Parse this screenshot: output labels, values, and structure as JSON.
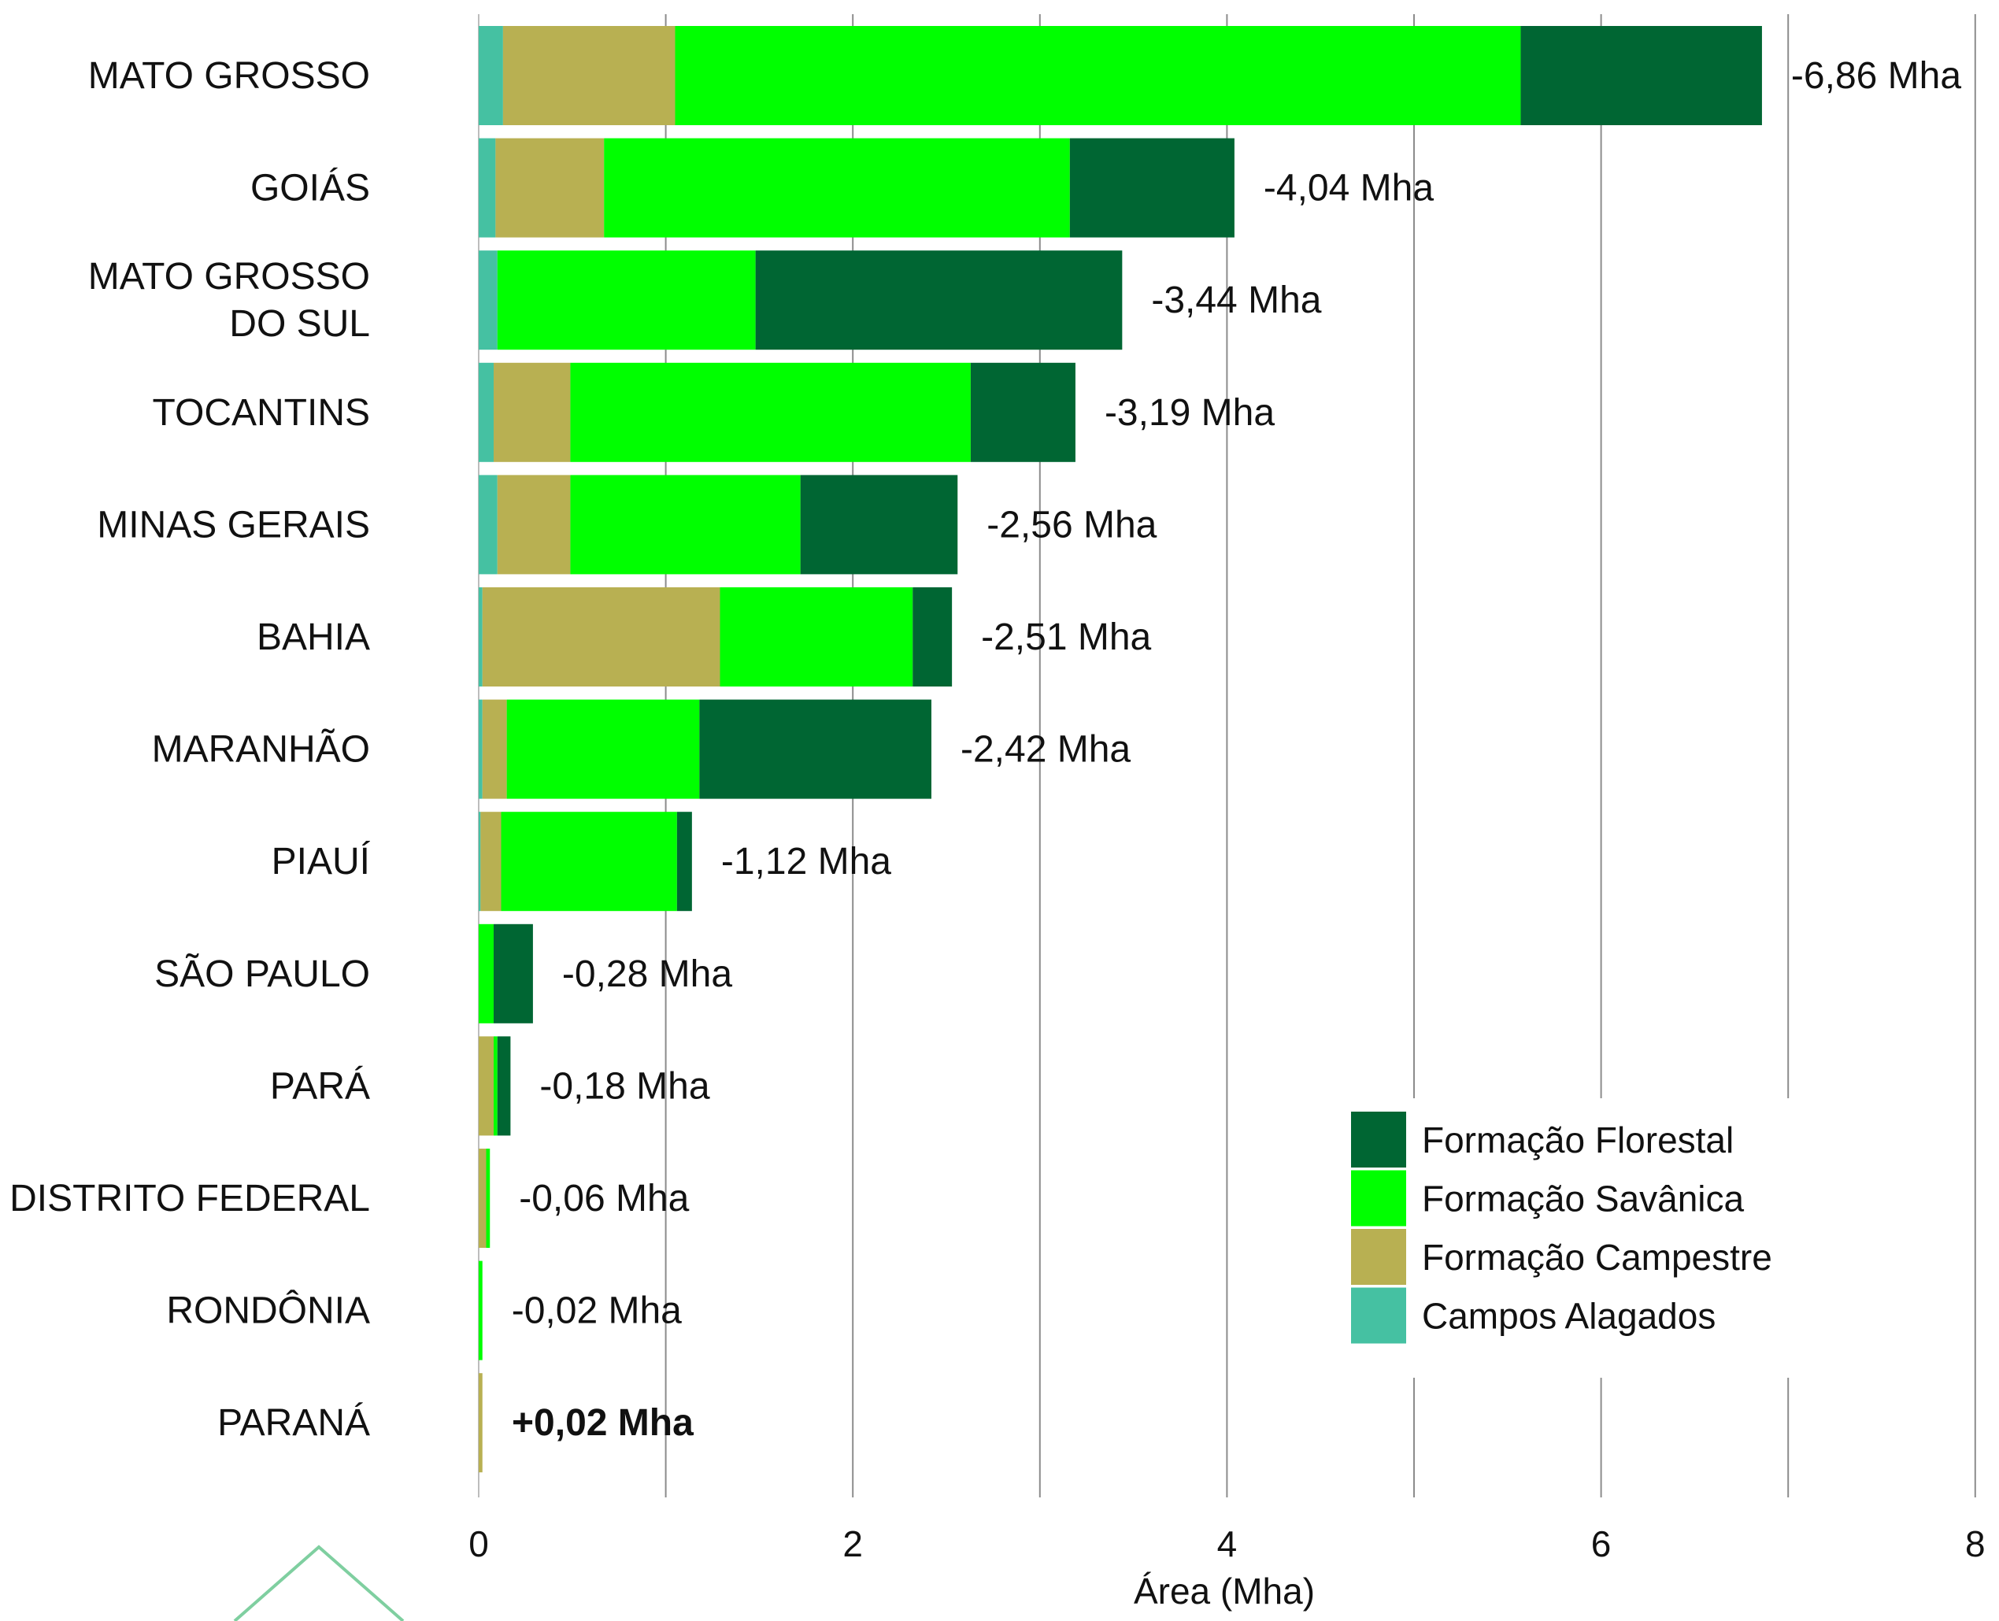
{
  "chart_data": {
    "type": "bar",
    "orientation": "horizontal",
    "stacked": true,
    "categories": [
      "MATO GROSSO",
      "GOIÁS",
      "MATO GROSSO DO SUL",
      "TOCANTINS",
      "MINAS GERAIS",
      "BAHIA",
      "MARANHÃO",
      "PIAUÍ",
      "SÃO PAULO",
      "PARÁ",
      "DISTRITO FEDERAL",
      "RONDÔNIA",
      "PARANÁ"
    ],
    "series": [
      {
        "name": "Campos Alagados",
        "color": "#45c1a2",
        "values": [
          0.13,
          0.09,
          0.1,
          0.08,
          0.1,
          0.02,
          0.02,
          0.01,
          0.0,
          0.0,
          0.0,
          0.0,
          0.0
        ]
      },
      {
        "name": "Formação Campestre",
        "color": "#b8b052",
        "values": [
          0.92,
          0.58,
          0.0,
          0.41,
          0.39,
          1.27,
          0.13,
          0.11,
          0.0,
          0.08,
          0.04,
          0.0,
          0.02
        ]
      },
      {
        "name": "Formação Savânica",
        "color": "#00ff00",
        "values": [
          4.52,
          2.49,
          1.38,
          2.14,
          1.23,
          1.03,
          1.03,
          0.94,
          0.08,
          0.02,
          0.02,
          0.02,
          0.0
        ]
      },
      {
        "name": "Formação Florestal",
        "color": "#006633",
        "values": [
          1.29,
          0.88,
          1.96,
          0.56,
          0.84,
          0.21,
          1.24,
          0.08,
          0.21,
          0.07,
          0.0,
          0.0,
          0.0
        ]
      }
    ],
    "totals": [
      "-6,86 Mha",
      "-4,04 Mha",
      "-3,44 Mha",
      "-3,19 Mha",
      "-2,56 Mha",
      "-2,51 Mha",
      "-2,42 Mha",
      "-1,12 Mha",
      "-0,28 Mha",
      "-0,18 Mha",
      "-0,06 Mha",
      "-0,02 Mha",
      "+0,02 Mha"
    ],
    "bold_totals": [
      false,
      false,
      false,
      false,
      false,
      false,
      false,
      false,
      false,
      false,
      false,
      false,
      true
    ],
    "xlabel": "Área (Mha)",
    "ylabel": "",
    "xlim": [
      0,
      8
    ],
    "xticks": [
      0,
      2,
      4,
      6,
      8
    ],
    "grid": true,
    "legend_position": "lower-right",
    "legend_order": [
      "Formação Florestal",
      "Formação Savânica",
      "Formação Campestre",
      "Campos Alagados"
    ]
  }
}
